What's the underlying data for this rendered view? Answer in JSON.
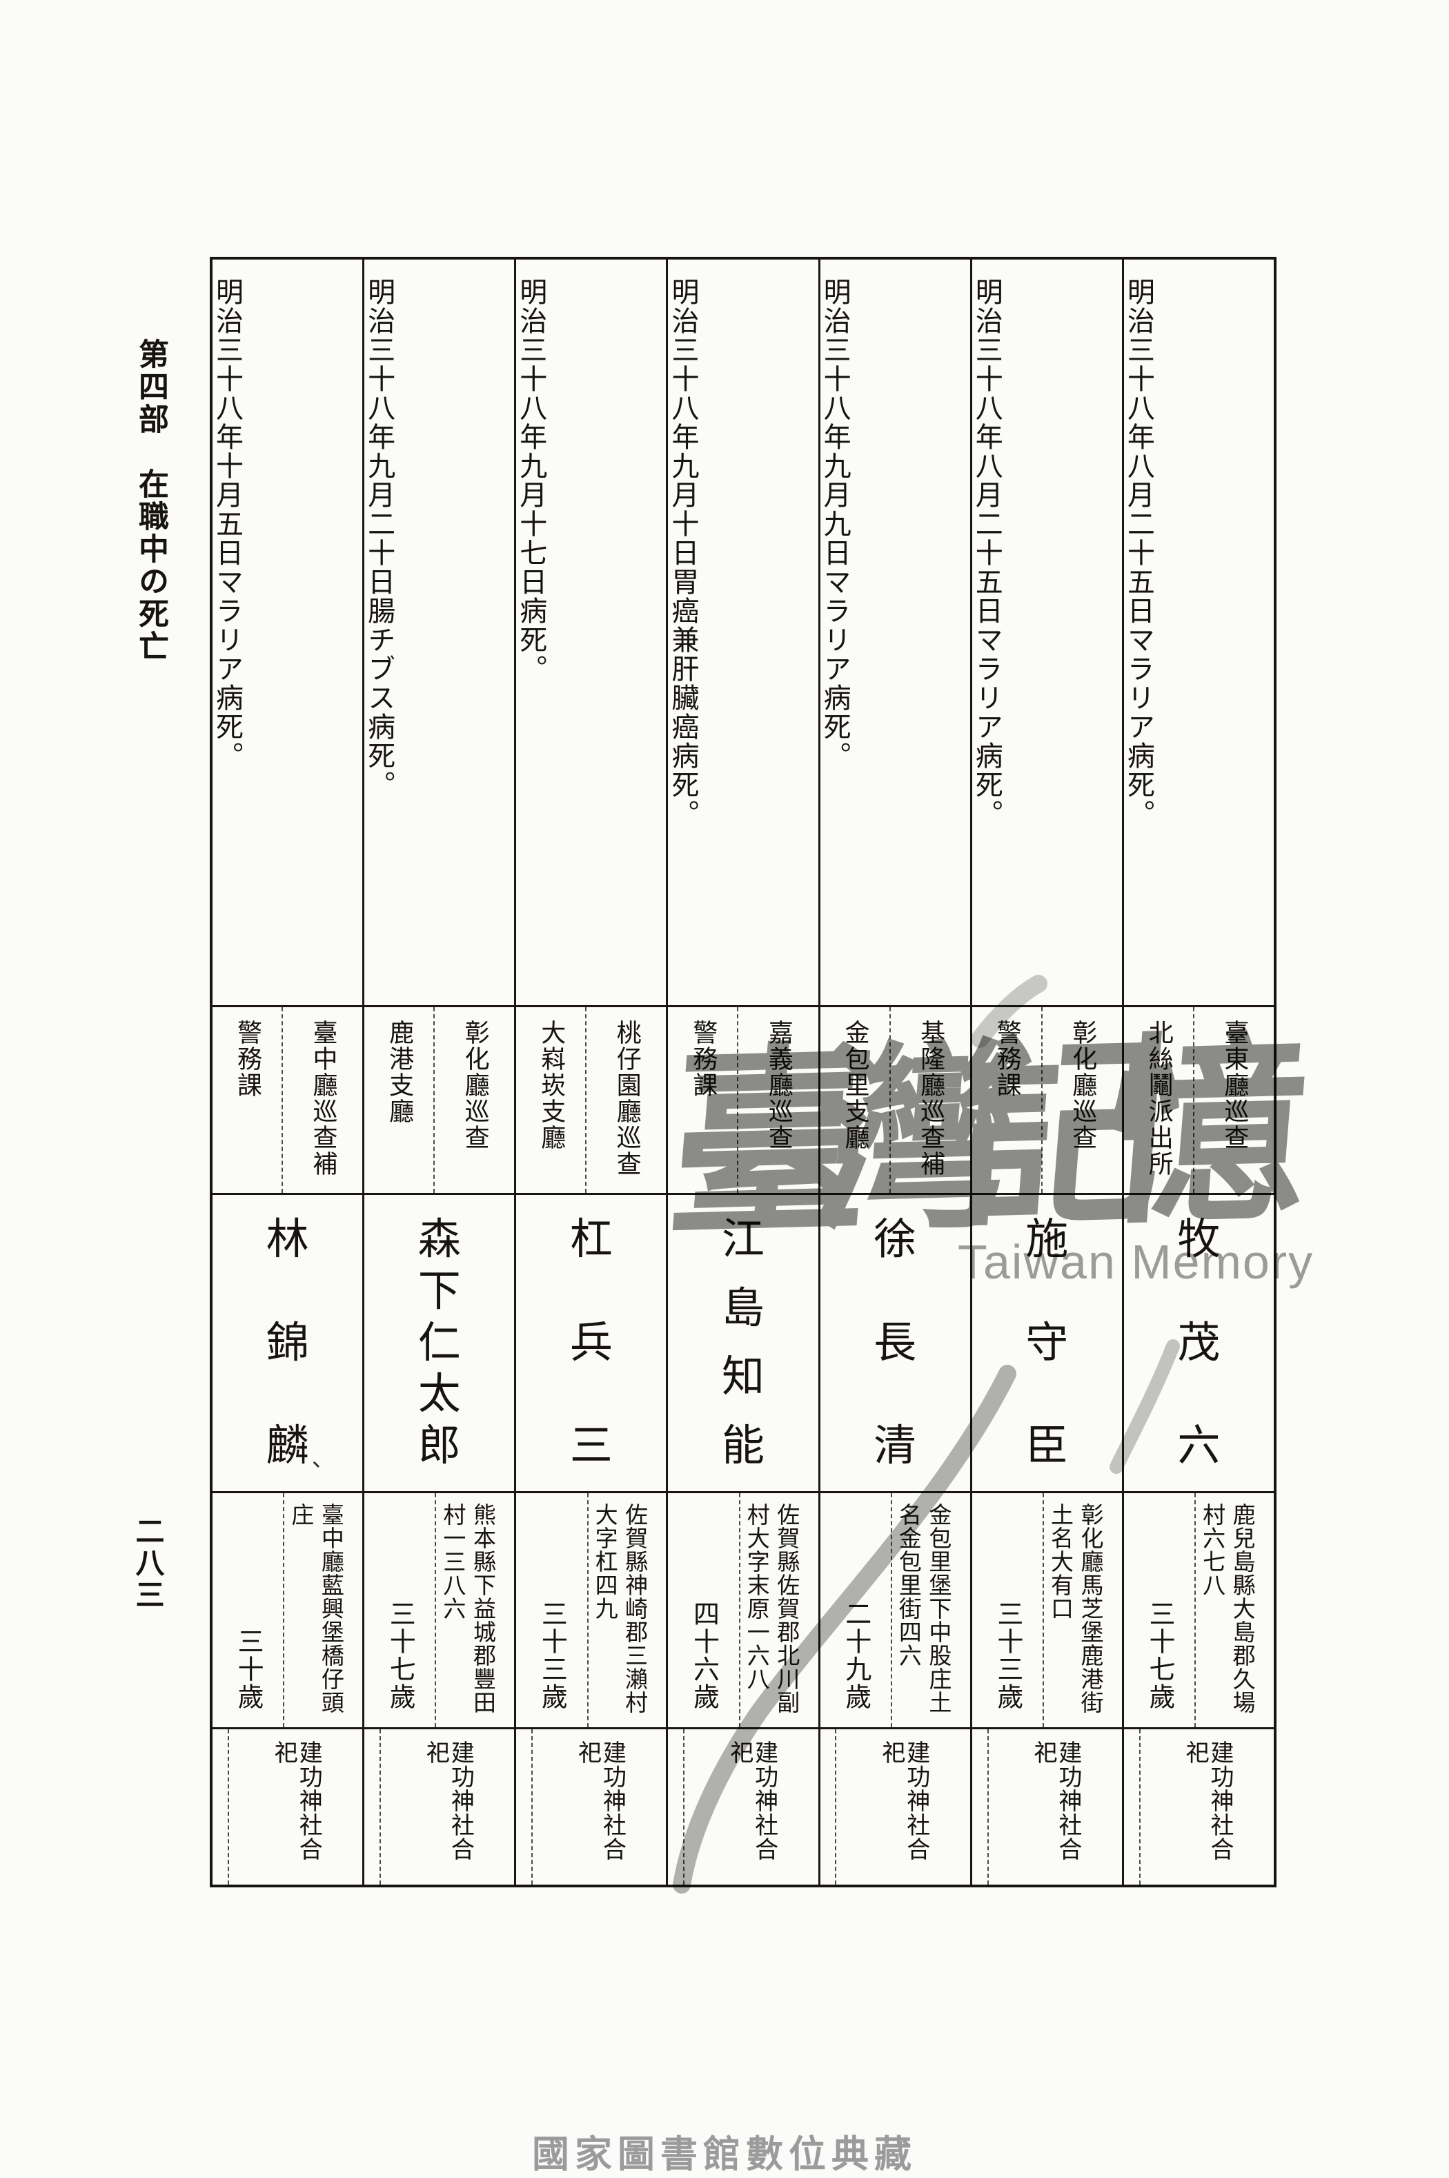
{
  "page": {
    "section_header": "第四部　在職中の死亡",
    "page_number": "二八三",
    "footer_caption": "國家圖書館數位典藏",
    "watermark_cjk": "臺灣記憶",
    "watermark_latin": "Taiwan Memory"
  },
  "colors": {
    "ink": "#17130e",
    "border": "#1b160f",
    "dashed_rule": "#4a4a4a",
    "watermark": "#8d8d8d",
    "footer_caption": "#9b9b9b",
    "paper": "#fbfbf9"
  },
  "table": {
    "entries": [
      {
        "date": "明治三十八年八月二十五日マラリア病死。",
        "position": "臺東廳巡查",
        "station": "北絲鬮派出所",
        "name": "牧茂六",
        "birthplace": "鹿兒島縣大島郡久場村六七八",
        "age": "三十七歲",
        "note": "建功神社合祀"
      },
      {
        "date": "明治三十八年八月二十五日マラリア病死。",
        "position": "彰化廳巡查",
        "station": "警務課",
        "name": "施守臣",
        "birthplace": "彰化廳馬芝堡鹿港街土名大有口",
        "age": "三十三歲",
        "note": "建功神社合祀"
      },
      {
        "date": "明治三十八年九月九日マラリア病死。",
        "position": "基隆廳巡查補",
        "station": "金包里支廳",
        "name": "徐長清",
        "birthplace": "金包里堡下中股庄土名金包里街四六",
        "age": "二十九歲",
        "note": "建功神社合祀"
      },
      {
        "date": "明治三十八年九月十日胃癌兼肝臟癌病死。",
        "position": "嘉義廳巡查",
        "station": "警務課",
        "name": "江島知能",
        "birthplace": "佐賀縣佐賀郡北川副村大字末原一六八",
        "age": "四十六歲",
        "note": "建功神社合祀"
      },
      {
        "date": "明治三十八年九月十七日病死。",
        "position": "桃仔園廳巡查",
        "station": "大嵙崁支廳",
        "name": "杠兵三",
        "birthplace": "佐賀縣神崎郡三瀨村大字杠四九",
        "age": "三十三歲",
        "note": "建功神社合祀"
      },
      {
        "date": "明治三十八年九月二十日腸チブス病死。",
        "position": "彰化廳巡查",
        "station": "鹿港支廳",
        "name": "森下仁太郎",
        "birthplace": "熊本縣下益城郡豐田村一三八六",
        "age": "三十七歲",
        "note": "建功神社合祀"
      },
      {
        "date": "明治三十八年十月五日マラリア病死。",
        "position": "臺中廳巡查補",
        "station": "警務課",
        "name": "林錦麟",
        "name_mark": "、",
        "birthplace": "臺中廳藍興堡橋仔頭庄",
        "age": "三十歲",
        "note": "建功神社合祀"
      }
    ]
  }
}
